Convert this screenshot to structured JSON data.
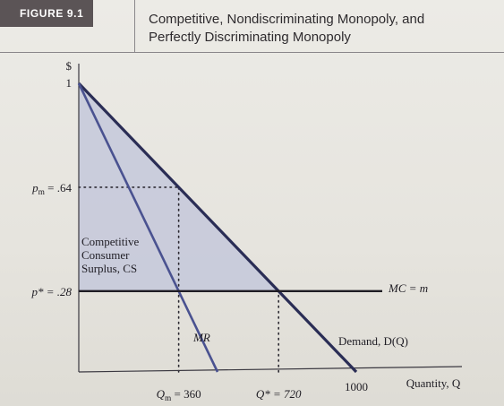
{
  "figure": {
    "label": "FIGURE 9.1",
    "title_line1": "Competitive, Nondiscriminating Monopoly, and",
    "title_line2": "Perfectly Discriminating Monopoly"
  },
  "chart_data": {
    "type": "line",
    "x": {
      "label": "Quantity, Q",
      "range": [
        0,
        1000
      ]
    },
    "y": {
      "label": "$",
      "range": [
        0,
        1
      ]
    },
    "y_ticks": [
      {
        "value": 1,
        "label": "1"
      },
      {
        "value": 0.64,
        "label": "p_m = .64"
      },
      {
        "value": 0.28,
        "label": "p* = .28"
      }
    ],
    "x_ticks": [
      {
        "value": 360,
        "label": "Q_m = 360"
      },
      {
        "value": 720,
        "label": "Q* = 720"
      },
      {
        "value": 1000,
        "label": "1000"
      }
    ],
    "series": [
      {
        "name": "Demand, D(Q)",
        "points": [
          [
            0,
            1
          ],
          [
            1000,
            0
          ]
        ]
      },
      {
        "name": "MR",
        "points": [
          [
            0,
            1
          ],
          [
            500,
            0
          ]
        ]
      },
      {
        "name": "MC = m",
        "points": [
          [
            0,
            0.28
          ],
          [
            1000,
            0.28
          ]
        ]
      }
    ],
    "shaded_region": {
      "label_lines": [
        "Competitive",
        "Consumer",
        "Surplus, CS"
      ],
      "points": [
        [
          0,
          1
        ],
        [
          720,
          0.28
        ],
        [
          0,
          0.28
        ]
      ]
    },
    "reference_lines": [
      {
        "type": "horizontal",
        "from": [
          0,
          0.64
        ],
        "to": [
          360,
          0.64
        ],
        "style": "dotted"
      },
      {
        "type": "vertical",
        "from": [
          360,
          0
        ],
        "to": [
          360,
          0.64
        ],
        "style": "dotted"
      },
      {
        "type": "vertical",
        "from": [
          720,
          0
        ],
        "to": [
          720,
          0.28
        ],
        "style": "dotted"
      }
    ],
    "colors": {
      "demand": "#2a2d55",
      "mr": "#4a5290",
      "mc": "#1f1d24",
      "shade": "#c4c8da"
    }
  }
}
